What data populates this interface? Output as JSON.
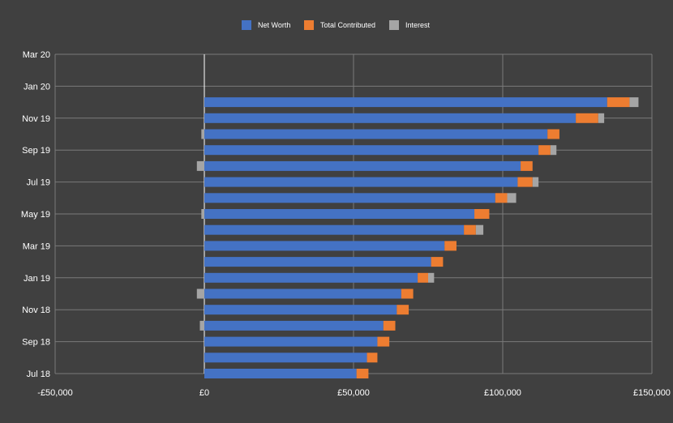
{
  "chart_data": {
    "type": "bar",
    "orientation": "horizontal",
    "stacked": true,
    "legend_position": "top",
    "grid": true,
    "xlim": [
      -50000,
      150000
    ],
    "x_ticks": [
      {
        "value": -50000,
        "label": "-£50,000"
      },
      {
        "value": 0,
        "label": "£0"
      },
      {
        "value": 50000,
        "label": "£50,000"
      },
      {
        "value": 100000,
        "label": "£100,000"
      },
      {
        "value": 150000,
        "label": "£150,000"
      }
    ],
    "y_tick_labels": [
      "Jul 18",
      "Sep 18",
      "Nov 18",
      "Jan 19",
      "Mar 19",
      "May 19",
      "Jul 19",
      "Sep 19",
      "Nov 19",
      "Jan 20",
      "Mar 20"
    ],
    "categories": [
      "Jul 18",
      "Aug 18",
      "Sep 18",
      "Oct 18",
      "Nov 18",
      "Dec 18",
      "Jan 19",
      "Feb 19",
      "Mar 19",
      "Apr 19",
      "May 19",
      "Jun 19",
      "Jul 19",
      "Aug 19",
      "Sep 19",
      "Oct 19",
      "Nov 19",
      "Dec 19",
      "Jan 20",
      "Feb 20",
      "Mar 20"
    ],
    "series": [
      {
        "name": "Net Worth",
        "color": "#4472c4",
        "values": [
          51000,
          54500,
          58000,
          60000,
          64500,
          66000,
          71500,
          76000,
          80500,
          87000,
          90500,
          97500,
          105000,
          106000,
          112000,
          115000,
          124500,
          135000,
          null,
          null,
          null
        ]
      },
      {
        "name": "Total Contributed",
        "color": "#ed7d31",
        "values": [
          4000,
          3500,
          4000,
          4000,
          4000,
          4000,
          3500,
          4000,
          4000,
          4000,
          5000,
          4000,
          5000,
          4000,
          4000,
          4000,
          7500,
          7500,
          null,
          null,
          null
        ]
      },
      {
        "name": "Interest",
        "color": "#a5a5a5",
        "values": [
          0,
          0,
          0,
          -1500,
          0,
          -2500,
          2000,
          0,
          0,
          2500,
          -1000,
          3000,
          2000,
          -2500,
          2000,
          -1000,
          2000,
          3000,
          null,
          null,
          null
        ]
      }
    ]
  }
}
